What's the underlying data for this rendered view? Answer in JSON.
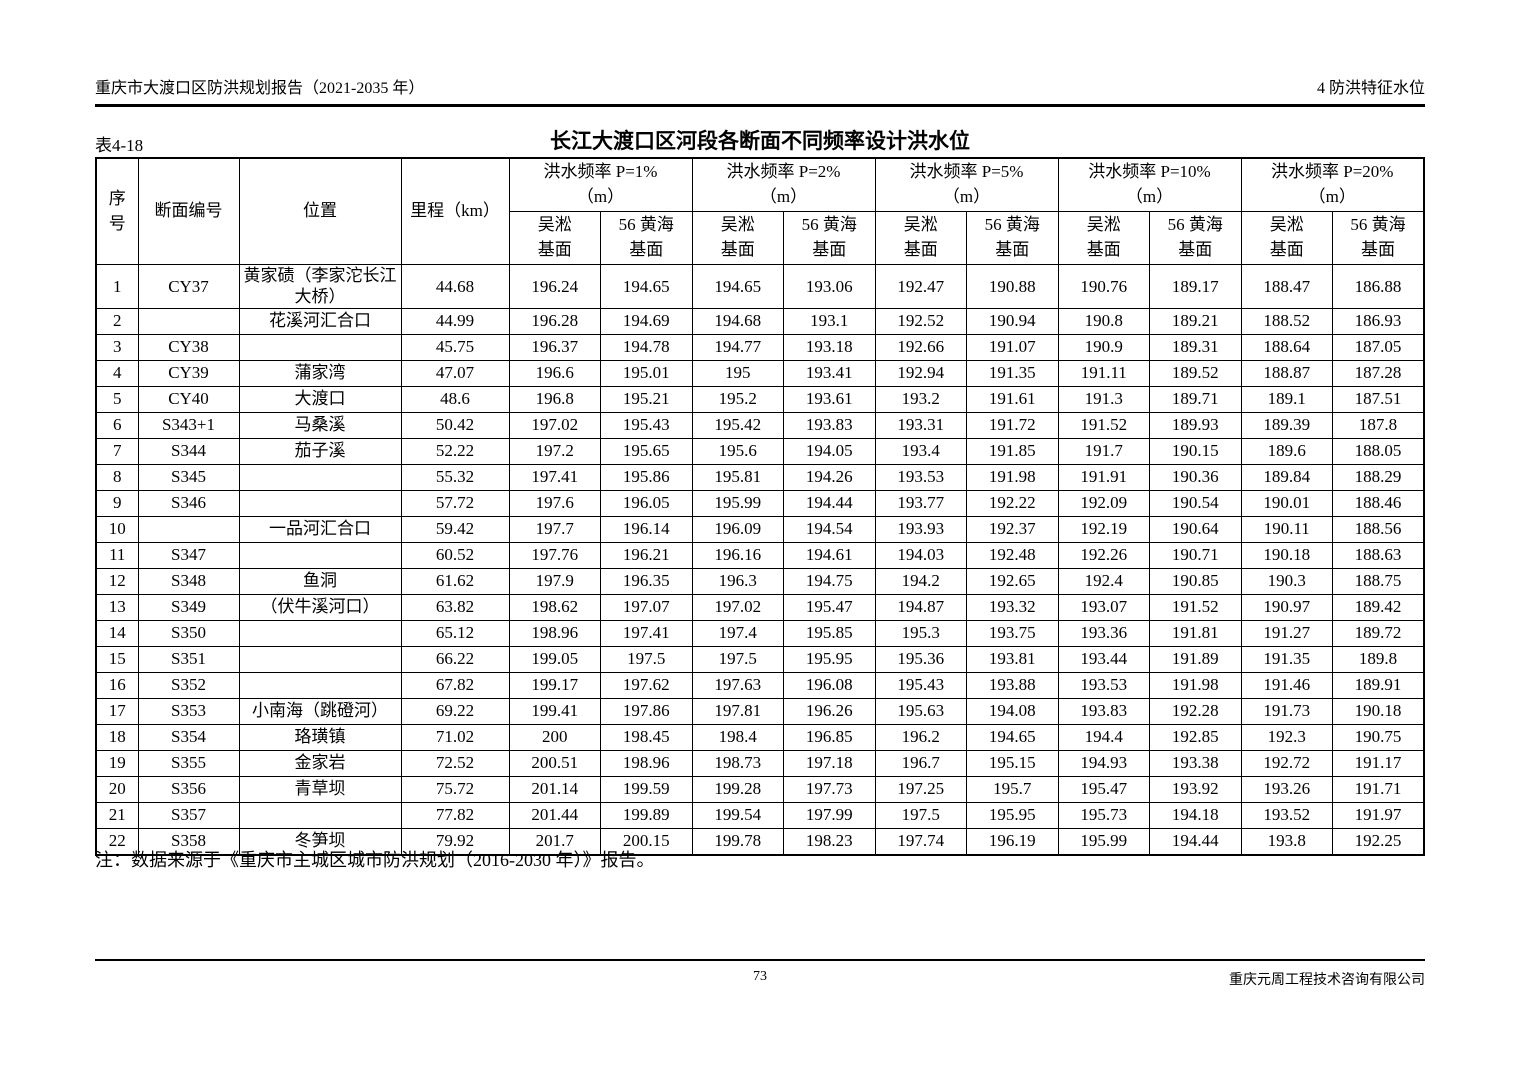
{
  "page_header": {
    "left": "重庆市大渡口区防洪规划报告（2021-2035 年）",
    "right": "4 防洪特征水位"
  },
  "table": {
    "label": "表4-18",
    "title": "长江大渡口区河段各断面不同频率设计洪水位",
    "note": "注：数据来源于《重庆市主城区城市防洪规划（2016-2030 年）》报告。",
    "columns": {
      "seq": "序\n号",
      "section": "断面编号",
      "location": "位置",
      "mileage": "里程（km）",
      "freq_groups": [
        "洪水频率 P=1%\n（m）",
        "洪水频率 P=2%\n（m）",
        "洪水频率 P=5%\n（m）",
        "洪水频率 P=10%\n（m）",
        "洪水频率 P=20%\n（m）"
      ],
      "datum_wusong": "吴淞\n基面",
      "datum_huanghai": "56 黄海\n基面"
    },
    "rows": [
      {
        "seq": "1",
        "section": "CY37",
        "location": "黄家碛（李家沱长江大桥）",
        "mileage": "44.68",
        "values": [
          "196.24",
          "194.65",
          "194.65",
          "193.06",
          "192.47",
          "190.88",
          "190.76",
          "189.17",
          "188.47",
          "186.88"
        ]
      },
      {
        "seq": "2",
        "section": "",
        "location": "花溪河汇合口",
        "mileage": "44.99",
        "values": [
          "196.28",
          "194.69",
          "194.68",
          "193.1",
          "192.52",
          "190.94",
          "190.8",
          "189.21",
          "188.52",
          "186.93"
        ]
      },
      {
        "seq": "3",
        "section": "CY38",
        "location": "",
        "mileage": "45.75",
        "values": [
          "196.37",
          "194.78",
          "194.77",
          "193.18",
          "192.66",
          "191.07",
          "190.9",
          "189.31",
          "188.64",
          "187.05"
        ]
      },
      {
        "seq": "4",
        "section": "CY39",
        "location": "蒲家湾",
        "mileage": "47.07",
        "values": [
          "196.6",
          "195.01",
          "195",
          "193.41",
          "192.94",
          "191.35",
          "191.11",
          "189.52",
          "188.87",
          "187.28"
        ]
      },
      {
        "seq": "5",
        "section": "CY40",
        "location": "大渡口",
        "mileage": "48.6",
        "values": [
          "196.8",
          "195.21",
          "195.2",
          "193.61",
          "193.2",
          "191.61",
          "191.3",
          "189.71",
          "189.1",
          "187.51"
        ]
      },
      {
        "seq": "6",
        "section": "S343+1",
        "location": "马桑溪",
        "mileage": "50.42",
        "values": [
          "197.02",
          "195.43",
          "195.42",
          "193.83",
          "193.31",
          "191.72",
          "191.52",
          "189.93",
          "189.39",
          "187.8"
        ]
      },
      {
        "seq": "7",
        "section": "S344",
        "location": "茄子溪",
        "mileage": "52.22",
        "values": [
          "197.2",
          "195.65",
          "195.6",
          "194.05",
          "193.4",
          "191.85",
          "191.7",
          "190.15",
          "189.6",
          "188.05"
        ]
      },
      {
        "seq": "8",
        "section": "S345",
        "location": "",
        "mileage": "55.32",
        "values": [
          "197.41",
          "195.86",
          "195.81",
          "194.26",
          "193.53",
          "191.98",
          "191.91",
          "190.36",
          "189.84",
          "188.29"
        ]
      },
      {
        "seq": "9",
        "section": "S346",
        "location": "",
        "mileage": "57.72",
        "values": [
          "197.6",
          "196.05",
          "195.99",
          "194.44",
          "193.77",
          "192.22",
          "192.09",
          "190.54",
          "190.01",
          "188.46"
        ]
      },
      {
        "seq": "10",
        "section": "",
        "location": "一品河汇合口",
        "mileage": "59.42",
        "values": [
          "197.7",
          "196.14",
          "196.09",
          "194.54",
          "193.93",
          "192.37",
          "192.19",
          "190.64",
          "190.11",
          "188.56"
        ]
      },
      {
        "seq": "11",
        "section": "S347",
        "location": "",
        "mileage": "60.52",
        "values": [
          "197.76",
          "196.21",
          "196.16",
          "194.61",
          "194.03",
          "192.48",
          "192.26",
          "190.71",
          "190.18",
          "188.63"
        ]
      },
      {
        "seq": "12",
        "section": "S348",
        "location": "鱼洞",
        "mileage": "61.62",
        "values": [
          "197.9",
          "196.35",
          "196.3",
          "194.75",
          "194.2",
          "192.65",
          "192.4",
          "190.85",
          "190.3",
          "188.75"
        ]
      },
      {
        "seq": "13",
        "section": "S349",
        "location": "（伏牛溪河口）",
        "mileage": "63.82",
        "values": [
          "198.62",
          "197.07",
          "197.02",
          "195.47",
          "194.87",
          "193.32",
          "193.07",
          "191.52",
          "190.97",
          "189.42"
        ]
      },
      {
        "seq": "14",
        "section": "S350",
        "location": "",
        "mileage": "65.12",
        "values": [
          "198.96",
          "197.41",
          "197.4",
          "195.85",
          "195.3",
          "193.75",
          "193.36",
          "191.81",
          "191.27",
          "189.72"
        ]
      },
      {
        "seq": "15",
        "section": "S351",
        "location": "",
        "mileage": "66.22",
        "values": [
          "199.05",
          "197.5",
          "197.5",
          "195.95",
          "195.36",
          "193.81",
          "193.44",
          "191.89",
          "191.35",
          "189.8"
        ]
      },
      {
        "seq": "16",
        "section": "S352",
        "location": "",
        "mileage": "67.82",
        "values": [
          "199.17",
          "197.62",
          "197.63",
          "196.08",
          "195.43",
          "193.88",
          "193.53",
          "191.98",
          "191.46",
          "189.91"
        ]
      },
      {
        "seq": "17",
        "section": "S353",
        "location": "小南海（跳磴河）",
        "mileage": "69.22",
        "values": [
          "199.41",
          "197.86",
          "197.81",
          "196.26",
          "195.63",
          "194.08",
          "193.83",
          "192.28",
          "191.73",
          "190.18"
        ]
      },
      {
        "seq": "18",
        "section": "S354",
        "location": "珞璜镇",
        "mileage": "71.02",
        "values": [
          "200",
          "198.45",
          "198.4",
          "196.85",
          "196.2",
          "194.65",
          "194.4",
          "192.85",
          "192.3",
          "190.75"
        ]
      },
      {
        "seq": "19",
        "section": "S355",
        "location": "金家岩",
        "mileage": "72.52",
        "values": [
          "200.51",
          "198.96",
          "198.73",
          "197.18",
          "196.7",
          "195.15",
          "194.93",
          "193.38",
          "192.72",
          "191.17"
        ]
      },
      {
        "seq": "20",
        "section": "S356",
        "location": "青草坝",
        "mileage": "75.72",
        "values": [
          "201.14",
          "199.59",
          "199.28",
          "197.73",
          "197.25",
          "195.7",
          "195.47",
          "193.92",
          "193.26",
          "191.71"
        ]
      },
      {
        "seq": "21",
        "section": "S357",
        "location": "",
        "mileage": "77.82",
        "values": [
          "201.44",
          "199.89",
          "199.54",
          "197.99",
          "197.5",
          "195.95",
          "195.73",
          "194.18",
          "193.52",
          "191.97"
        ]
      },
      {
        "seq": "22",
        "section": "S358",
        "location": "冬笋坝",
        "mileage": "79.92",
        "values": [
          "201.7",
          "200.15",
          "199.78",
          "198.23",
          "197.74",
          "196.19",
          "195.99",
          "194.44",
          "193.8",
          "192.25"
        ]
      }
    ]
  },
  "page_footer": {
    "page_number": "73",
    "company": "重庆元周工程技术咨询有限公司"
  }
}
